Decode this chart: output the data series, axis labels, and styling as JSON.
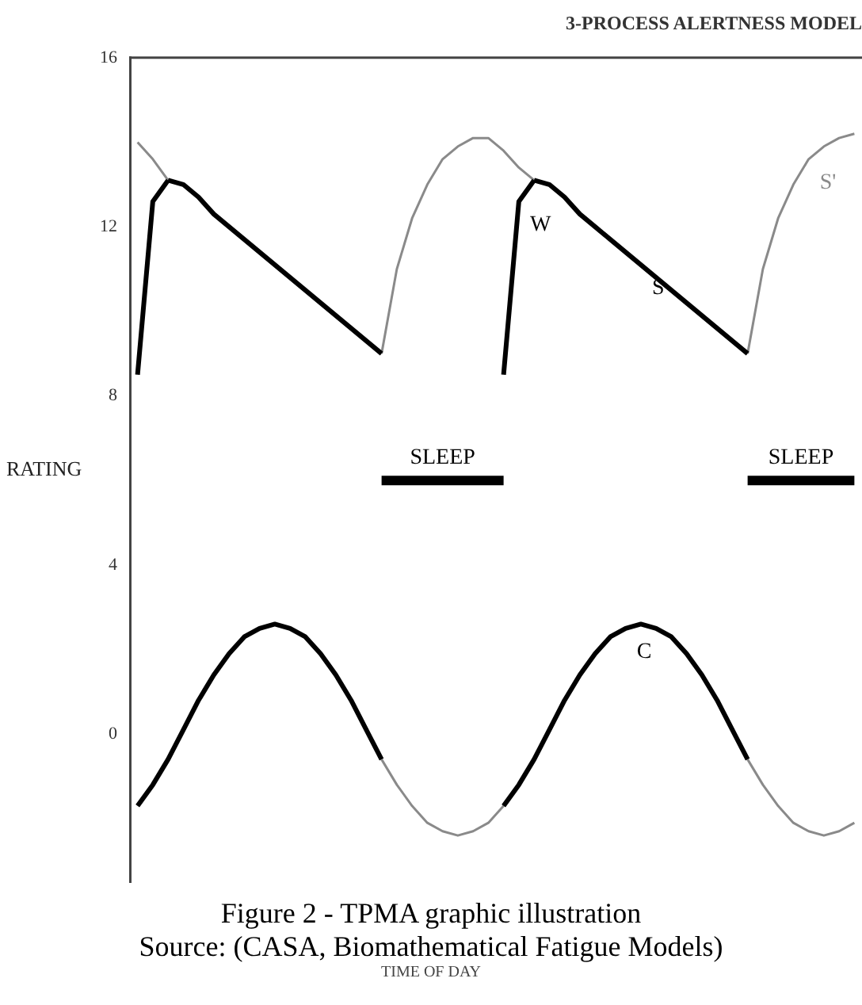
{
  "chart_data": {
    "type": "line",
    "title": "3-PROCESS ALERTNESS MODEL",
    "ylabel": "RATING",
    "categories": [
      null,
      null,
      null,
      null,
      null,
      null,
      null,
      null,
      null,
      null,
      null,
      null,
      null,
      null,
      null,
      null,
      null,
      null,
      null,
      null,
      null,
      null,
      null,
      null,
      null,
      null,
      null,
      null,
      null,
      null,
      null,
      null,
      null,
      null,
      null,
      null,
      null,
      null,
      null,
      null,
      null,
      null,
      null,
      null,
      null,
      null,
      null,
      null
    ],
    "series": [
      {
        "name": "W",
        "color": "#000000",
        "values": [
          8.5,
          12.6,
          13.1,
          null,
          null,
          null,
          null,
          null,
          null,
          null,
          null,
          null,
          null,
          null,
          null,
          null,
          null,
          null,
          null,
          null,
          null,
          null,
          null,
          null,
          8.5,
          12.6,
          13.1,
          null,
          null,
          null,
          null,
          null,
          null,
          null,
          null,
          null,
          null,
          null,
          null,
          null,
          null,
          null,
          null,
          null,
          null,
          null,
          null,
          null
        ]
      },
      {
        "name": "S",
        "color": "#000000",
        "values": [
          null,
          null,
          13.1,
          13.0,
          12.7,
          12.3,
          12.0,
          11.7,
          11.4,
          11.1,
          10.8,
          10.5,
          10.2,
          9.9,
          9.6,
          9.3,
          9.0,
          null,
          null,
          null,
          null,
          null,
          null,
          null,
          null,
          null,
          13.1,
          13.0,
          12.7,
          12.3,
          12.0,
          11.7,
          11.4,
          11.1,
          10.8,
          10.5,
          10.2,
          9.9,
          9.6,
          9.3,
          9.0,
          null,
          null,
          null,
          null,
          null,
          null,
          null
        ]
      },
      {
        "name": "S'",
        "color": "#8a8a8a",
        "values": [
          14.0,
          13.6,
          13.1,
          null,
          null,
          null,
          null,
          null,
          null,
          null,
          null,
          null,
          null,
          null,
          null,
          null,
          9.0,
          11.0,
          12.2,
          13.0,
          13.6,
          13.9,
          14.1,
          14.1,
          13.8,
          13.4,
          13.1,
          null,
          null,
          null,
          null,
          null,
          null,
          null,
          null,
          null,
          null,
          null,
          null,
          null,
          9.0,
          11.0,
          12.2,
          13.0,
          13.6,
          13.9,
          14.1,
          14.2
        ]
      },
      {
        "name": "C",
        "color": "#000000",
        "values": [
          -1.7,
          -1.2,
          -0.6,
          0.1,
          0.8,
          1.4,
          1.9,
          2.3,
          2.5,
          2.6,
          2.5,
          2.3,
          1.9,
          1.4,
          0.8,
          0.1,
          -0.6,
          null,
          null,
          null,
          null,
          null,
          null,
          null,
          -1.7,
          -1.2,
          -0.6,
          0.1,
          0.8,
          1.4,
          1.9,
          2.3,
          2.5,
          2.6,
          2.5,
          2.3,
          1.9,
          1.4,
          0.8,
          0.1,
          -0.6,
          null,
          null,
          null,
          null,
          null,
          null,
          null
        ]
      },
      {
        "color": "#8a8a8a",
        "values": [
          null,
          null,
          null,
          null,
          null,
          null,
          null,
          null,
          null,
          null,
          null,
          null,
          null,
          null,
          null,
          null,
          -0.6,
          -1.2,
          -1.7,
          -2.1,
          -2.3,
          -2.4,
          -2.3,
          -2.1,
          -1.7,
          null,
          null,
          null,
          null,
          null,
          null,
          null,
          null,
          null,
          null,
          null,
          null,
          null,
          null,
          null,
          -0.6,
          -1.2,
          -1.7,
          -2.1,
          -2.3,
          -2.4,
          -2.3,
          -2.1
        ]
      },
      {
        "name": "SLEEP",
        "color": "#000000",
        "values": [
          null,
          null,
          null,
          null,
          null,
          null,
          null,
          null,
          null,
          null,
          null,
          null,
          null,
          null,
          null,
          null,
          6.0,
          6.0,
          6.0,
          6.0,
          6.0,
          6.0,
          6.0,
          6.0,
          6.0,
          null,
          null,
          null,
          null,
          null,
          null,
          null,
          null,
          null,
          null,
          null,
          null,
          null,
          null,
          null,
          6.0,
          6.0,
          6.0,
          6.0,
          6.0,
          6.0,
          6.0,
          6.0
        ]
      }
    ],
    "ylim": [
      -3.5,
      16
    ],
    "yticks": [
      0,
      4,
      8,
      12,
      16
    ],
    "tick_labels": "y",
    "legend": false,
    "grid": false,
    "marker": "none",
    "line_style": "solid",
    "annotations": [
      "Figure 2 - TPMA graphic illustration",
      "Source: (CASA, Biomathematical Fatigue Models)",
      "TIME OF DAY"
    ]
  }
}
